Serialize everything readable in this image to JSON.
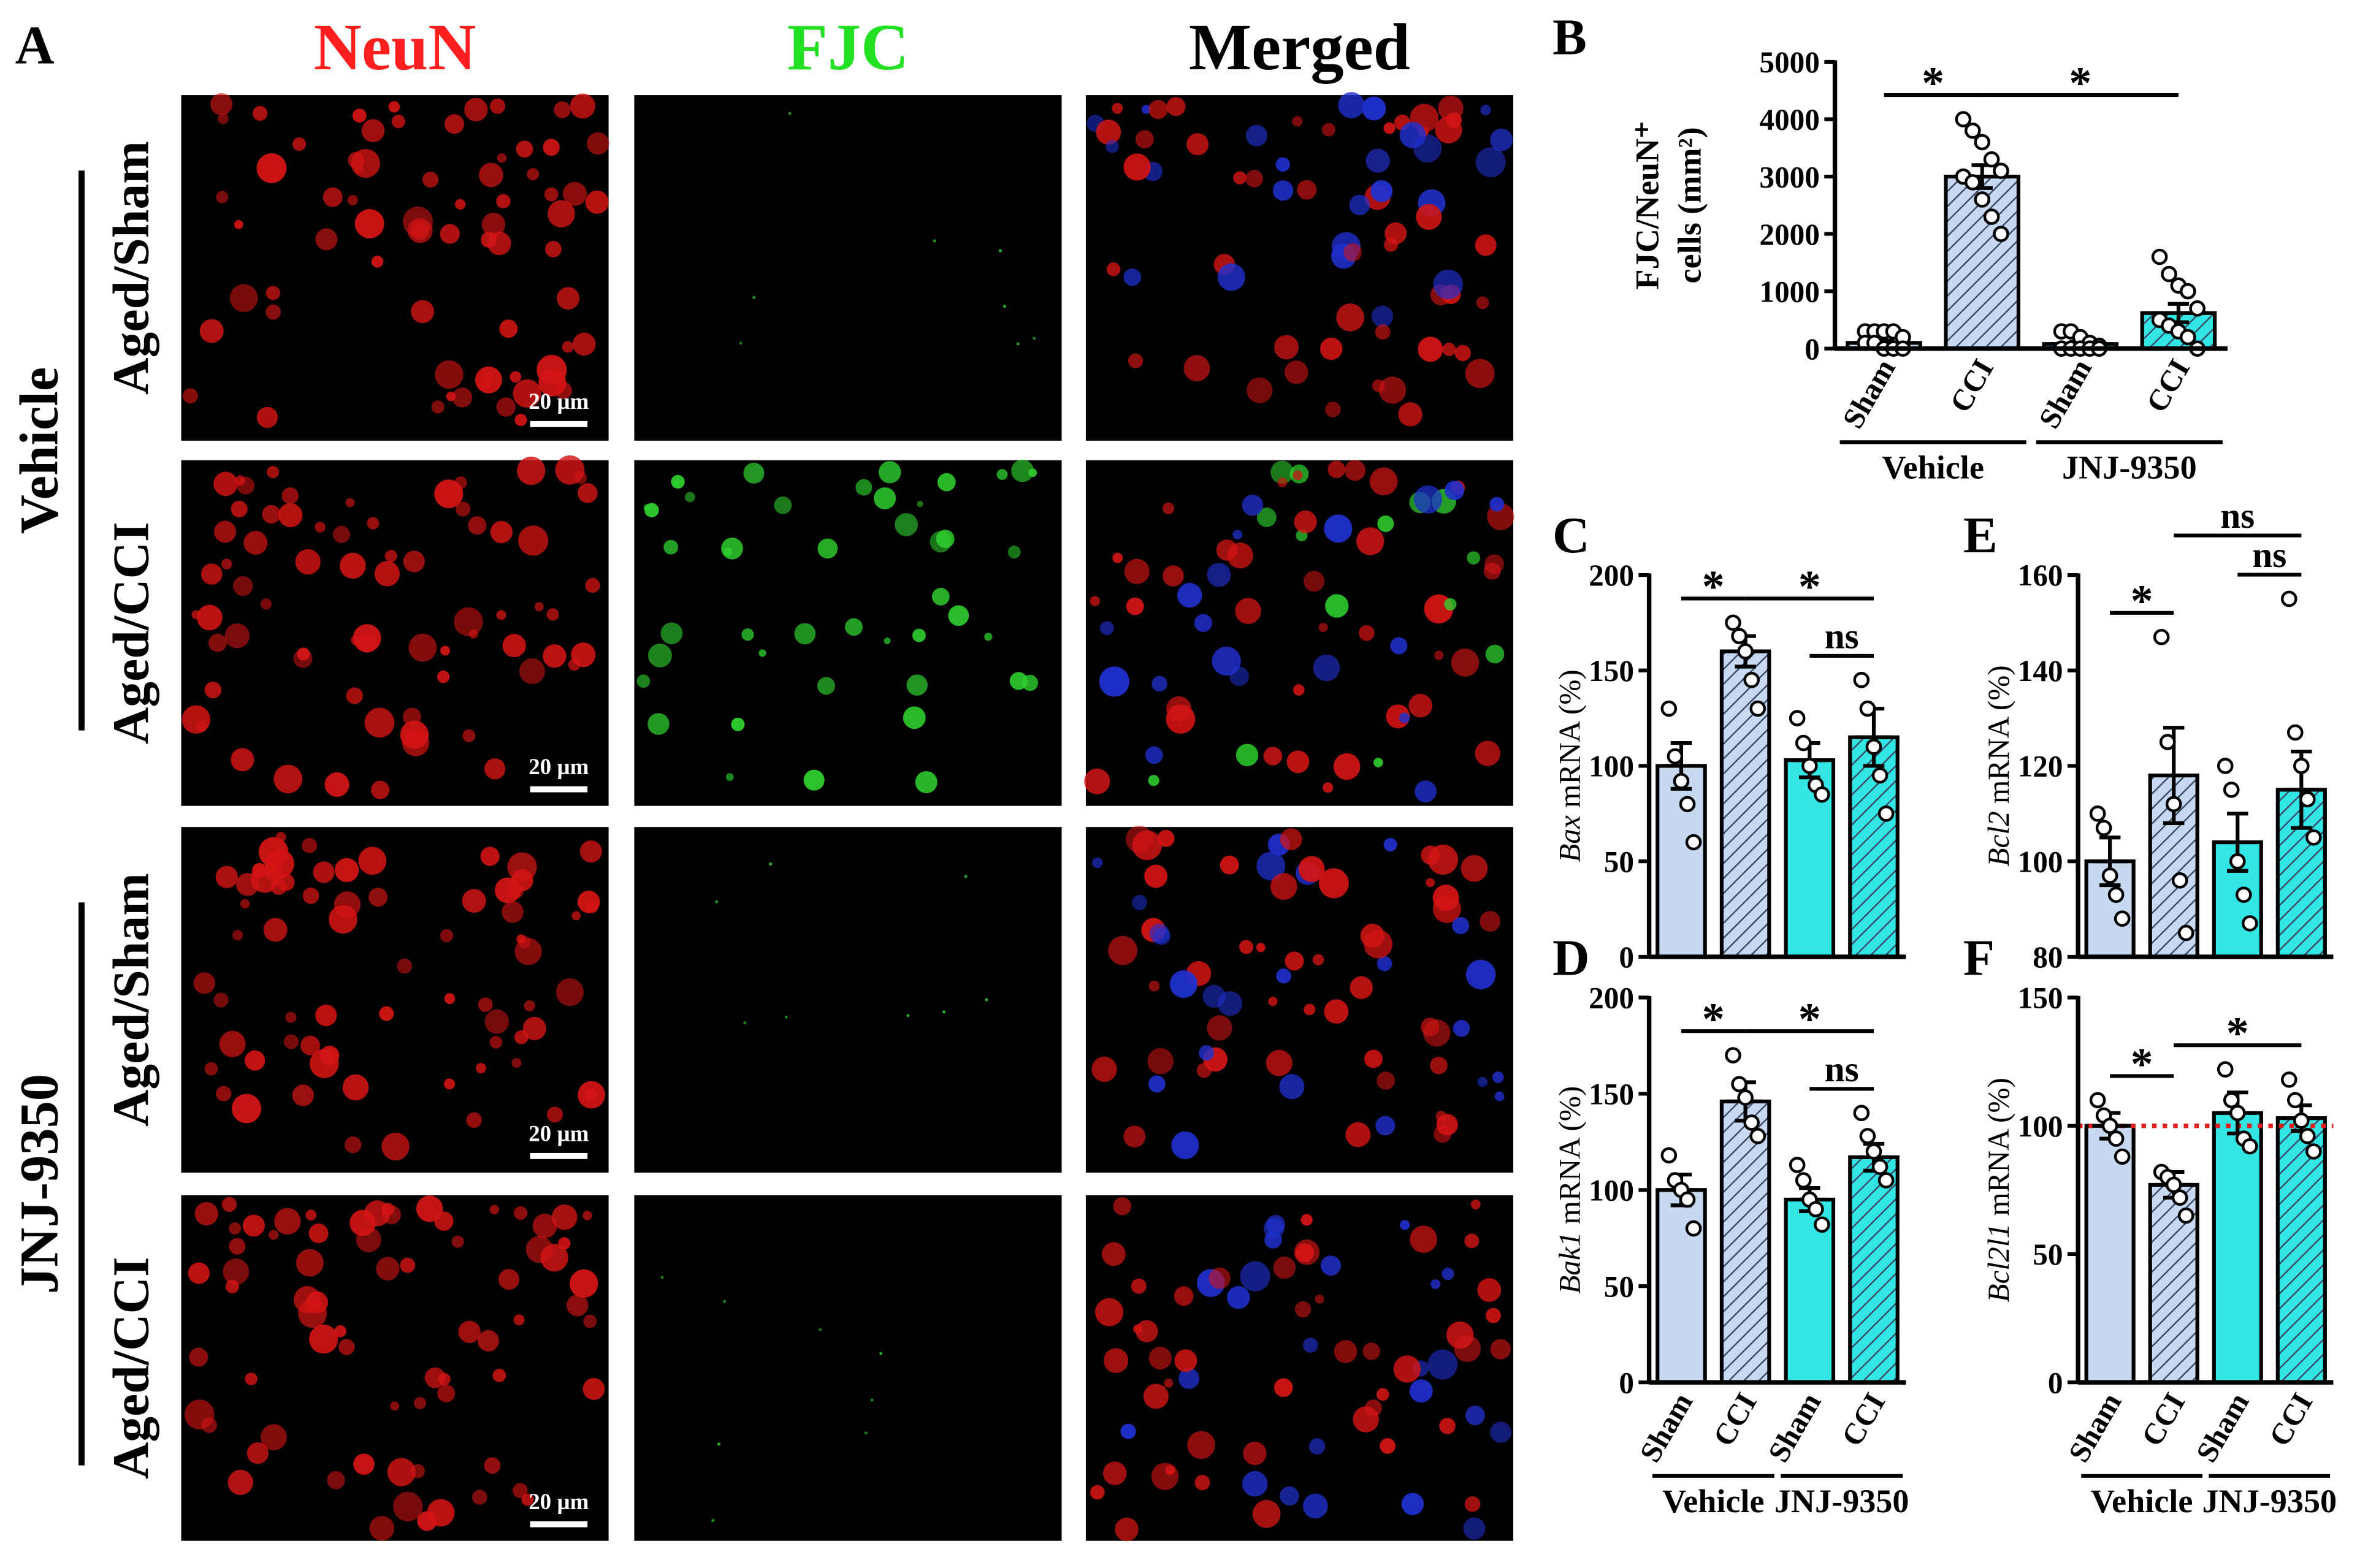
{
  "panel_a": {
    "label": "A",
    "columns": [
      {
        "text": "NeuN",
        "color": "#ff1e1e"
      },
      {
        "text": "FJC",
        "color": "#22e022"
      },
      {
        "text": "Merged",
        "color": "#000000"
      }
    ],
    "rows": [
      "Aged/Sham",
      "Aged/CCI",
      "Aged/Sham",
      "Aged/CCI"
    ],
    "groups": [
      {
        "name": "Vehicle",
        "rows": [
          0,
          1
        ]
      },
      {
        "name": "JNJ-9350",
        "rows": [
          2,
          3
        ]
      }
    ],
    "scale_bar": "20 µm"
  },
  "chart_data": [
    {
      "type": "bar",
      "panel": "B",
      "ylabel": [
        "FJC/NeuN⁺",
        "cells (mm²)"
      ],
      "categories": [
        "Sham",
        "CCI",
        "Sham",
        "CCI"
      ],
      "groups": [
        {
          "name": "Vehicle",
          "from": 0,
          "to": 1
        },
        {
          "name": "JNJ-9350",
          "from": 2,
          "to": 3
        }
      ],
      "values": [
        100,
        3000,
        80,
        620
      ],
      "errors": [
        40,
        200,
        35,
        160
      ],
      "points": [
        [
          300,
          300,
          300,
          300,
          200,
          100,
          100,
          0,
          0,
          0
        ],
        [
          4000,
          3800,
          3600,
          3300,
          3100,
          3000,
          2900,
          2600,
          2300,
          2000
        ],
        [
          300,
          300,
          200,
          100,
          50,
          0,
          0,
          0,
          0,
          0
        ],
        [
          1600,
          1300,
          1100,
          1000,
          700,
          500,
          400,
          300,
          200,
          0
        ]
      ],
      "colors": [
        "#c6d9f1",
        "#c6d9f1",
        "#33e6e6",
        "#33e6e6"
      ],
      "hatched": [
        false,
        true,
        false,
        true
      ],
      "ylim": [
        0,
        5000
      ],
      "yticks": [
        0,
        1000,
        2000,
        3000,
        4000,
        5000
      ],
      "annotations": [
        {
          "text": "*",
          "from": 0,
          "to": 1
        },
        {
          "text": "*",
          "from": 1,
          "to": 3
        }
      ]
    },
    {
      "type": "bar",
      "panel": "C",
      "ylabel_gene": "Bax",
      "ylabel": "mRNA (%)",
      "values": [
        100,
        160,
        103,
        115
      ],
      "errors": [
        12,
        8,
        9,
        15
      ],
      "points": [
        [
          130,
          105,
          92,
          80,
          60
        ],
        [
          175,
          168,
          160,
          145,
          130
        ],
        [
          125,
          112,
          100,
          90,
          85
        ],
        [
          145,
          130,
          110,
          95,
          75
        ]
      ],
      "colors": [
        "#c6d9f1",
        "#c6d9f1",
        "#33e6e6",
        "#33e6e6"
      ],
      "hatched": [
        false,
        true,
        false,
        true
      ],
      "ylim": [
        0,
        200
      ],
      "yticks": [
        0,
        50,
        100,
        150,
        200
      ],
      "annotations": [
        {
          "text": "*",
          "from": 0,
          "to": 1
        },
        {
          "text": "ns",
          "from": 2,
          "to": 3
        },
        {
          "text": "*",
          "from": 1,
          "to": 3
        }
      ]
    },
    {
      "type": "bar",
      "panel": "D",
      "ylabel_gene": "Bak1",
      "ylabel": "mRNA (%)",
      "categories": [
        "Sham",
        "CCI",
        "Sham",
        "CCI"
      ],
      "groups": [
        {
          "name": "Vehicle",
          "from": 0,
          "to": 1
        },
        {
          "name": "JNJ-9350",
          "from": 2,
          "to": 3
        }
      ],
      "values": [
        100,
        146,
        95,
        117
      ],
      "errors": [
        8,
        10,
        6,
        7
      ],
      "points": [
        [
          118,
          105,
          100,
          95,
          80
        ],
        [
          170,
          155,
          148,
          135,
          128
        ],
        [
          113,
          105,
          95,
          90,
          82
        ],
        [
          140,
          128,
          120,
          112,
          105
        ]
      ],
      "colors": [
        "#c6d9f1",
        "#c6d9f1",
        "#33e6e6",
        "#33e6e6"
      ],
      "hatched": [
        false,
        true,
        false,
        true
      ],
      "ylim": [
        0,
        200
      ],
      "yticks": [
        0,
        50,
        100,
        150,
        200
      ],
      "annotations": [
        {
          "text": "*",
          "from": 0,
          "to": 1
        },
        {
          "text": "ns",
          "from": 2,
          "to": 3
        },
        {
          "text": "*",
          "from": 1,
          "to": 3
        }
      ]
    },
    {
      "type": "bar",
      "panel": "E",
      "ylabel_gene": "Bcl2",
      "ylabel": "mRNA (%)",
      "values": [
        100,
        118,
        104,
        115
      ],
      "errors": [
        5,
        10,
        6,
        8
      ],
      "points": [
        [
          110,
          107,
          97,
          93,
          88
        ],
        [
          147,
          125,
          112,
          96,
          85
        ],
        [
          120,
          115,
          100,
          93,
          87
        ],
        [
          155,
          127,
          120,
          113,
          105
        ]
      ],
      "colors": [
        "#c6d9f1",
        "#c6d9f1",
        "#33e6e6",
        "#33e6e6"
      ],
      "hatched": [
        false,
        true,
        false,
        true
      ],
      "ylim": [
        80,
        160
      ],
      "yticks": [
        80,
        100,
        120,
        140,
        160
      ],
      "annotations": [
        {
          "text": "*",
          "from": 0,
          "to": 1
        },
        {
          "text": "ns",
          "from": 2,
          "to": 3
        },
        {
          "text": "ns",
          "from": 1,
          "to": 3
        }
      ]
    },
    {
      "type": "bar",
      "panel": "F",
      "ylabel_gene": "Bcl2l1",
      "ylabel": "mRNA (%)",
      "categories": [
        "Sham",
        "CCI",
        "Sham",
        "CCI"
      ],
      "groups": [
        {
          "name": "Vehicle",
          "from": 0,
          "to": 1
        },
        {
          "name": "JNJ-9350",
          "from": 2,
          "to": 3
        }
      ],
      "values": [
        100,
        77,
        105,
        103
      ],
      "errors": [
        5,
        5,
        8,
        5
      ],
      "points": [
        [
          110,
          104,
          100,
          95,
          88
        ],
        [
          82,
          80,
          77,
          72,
          65
        ],
        [
          122,
          110,
          105,
          95,
          92
        ],
        [
          118,
          110,
          102,
          96,
          90
        ]
      ],
      "colors": [
        "#c6d9f1",
        "#c6d9f1",
        "#33e6e6",
        "#33e6e6"
      ],
      "hatched": [
        false,
        true,
        false,
        true
      ],
      "ylim": [
        0,
        150
      ],
      "yticks": [
        0,
        50,
        100,
        150
      ],
      "refline": 100,
      "refline_color": "#e02020",
      "annotations": [
        {
          "text": "*",
          "from": 0,
          "to": 1
        },
        {
          "text": "*",
          "from": 1,
          "to": 3
        }
      ]
    }
  ]
}
